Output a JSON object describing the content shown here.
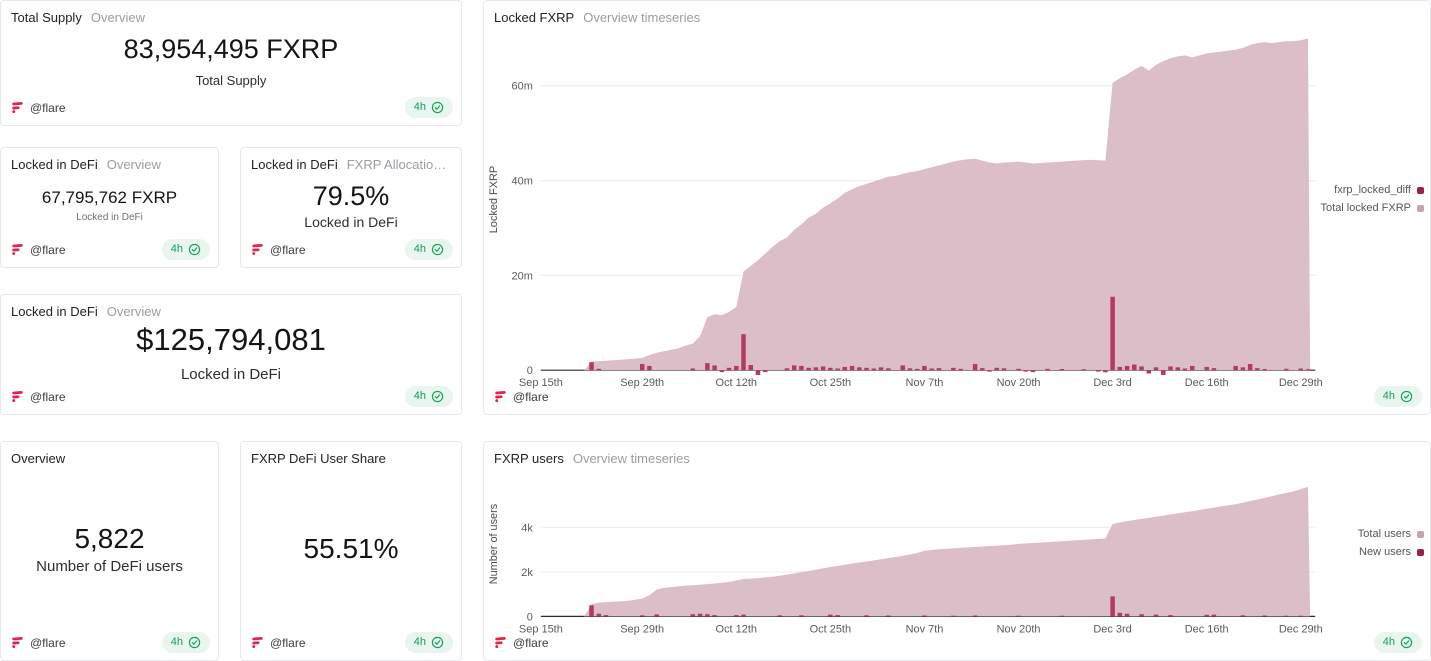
{
  "colors": {
    "flare_brand": "#e2234f",
    "badge_text": "#12a05a",
    "badge_bg": "#e9f6ef",
    "area_fill": "#dcbec8",
    "bar_fill": "#b43a5f",
    "legend_diff_marker": "#9e1f43",
    "legend_total_marker": "#c9a2b0"
  },
  "author": {
    "handle": "@flare"
  },
  "badge": {
    "label": "4h"
  },
  "cards": [
    {
      "title": "Total Supply",
      "subtitle": "Overview",
      "value": "83,954,495 FXRP",
      "value_label": "Total Supply"
    },
    {
      "title": "Locked in DeFi",
      "subtitle": "Overview",
      "value": "67,795,762 FXRP",
      "value_label": "Locked in DeFi"
    },
    {
      "title": "Locked in DeFi",
      "subtitle": "FXRP Allocation in ...",
      "value": "79.5%",
      "value_label": "Locked in DeFi"
    },
    {
      "title": "Locked in DeFi",
      "subtitle": "Overview",
      "value": "$125,794,081",
      "value_label": "Locked in DeFi"
    },
    {
      "title": "Overview",
      "subtitle": "",
      "value": "5,822",
      "value_label": "Number of DeFi users"
    },
    {
      "title": "FXRP DeFi User Share",
      "subtitle": "",
      "value": "55.51%",
      "value_label": ""
    }
  ],
  "chart_data": [
    {
      "type": "area+bar",
      "title": "Locked FXRP",
      "subtitle": "Overview timeseries",
      "ylabel": "Locked FXRP",
      "unit": "million FXRP",
      "ylim": [
        0,
        72
      ],
      "x_domain_days": [
        0,
        107
      ],
      "x_day0_date": "Sep 15th",
      "grid": "horizontal",
      "legend_position": "right",
      "yticks": [
        {
          "value": 0,
          "label": "0"
        },
        {
          "value": 20,
          "label": "20m"
        },
        {
          "value": 40,
          "label": "40m"
        },
        {
          "value": 60,
          "label": "60m"
        }
      ],
      "xticks": [
        {
          "day": 0,
          "label": "Sep 15th"
        },
        {
          "day": 14,
          "label": "Sep 29th"
        },
        {
          "day": 27,
          "label": "Oct 12th"
        },
        {
          "day": 40,
          "label": "Oct 25th"
        },
        {
          "day": 53,
          "label": "Nov 7th"
        },
        {
          "day": 66,
          "label": "Nov 20th"
        },
        {
          "day": 79,
          "label": "Dec 3rd"
        },
        {
          "day": 92,
          "label": "Dec 16th"
        },
        {
          "day": 105,
          "label": "Dec 29th"
        }
      ],
      "legend": [
        {
          "label": "fxrp_locked_diff",
          "color": "#9e1f43"
        },
        {
          "label": "Total locked FXRP",
          "color": "#c9a2b0"
        }
      ],
      "area_series": {
        "name": "Total locked FXRP",
        "color": "#dcbec8",
        "points": [
          [
            0,
            0
          ],
          [
            6,
            0
          ],
          [
            7,
            1.8
          ],
          [
            9,
            2.0
          ],
          [
            12,
            2.3
          ],
          [
            14,
            2.6
          ],
          [
            15,
            3.2
          ],
          [
            16,
            3.7
          ],
          [
            17,
            4.0
          ],
          [
            19,
            4.6
          ],
          [
            20,
            5.2
          ],
          [
            21,
            5.6
          ],
          [
            22,
            7.2
          ],
          [
            23,
            11.2
          ],
          [
            24,
            11.8
          ],
          [
            25,
            11.6
          ],
          [
            26,
            12.3
          ],
          [
            27,
            13.3
          ],
          [
            28,
            20.8
          ],
          [
            29,
            22.0
          ],
          [
            30,
            23.2
          ],
          [
            31,
            24.6
          ],
          [
            32,
            26.0
          ],
          [
            33,
            27.2
          ],
          [
            34,
            28.0
          ],
          [
            35,
            29.6
          ],
          [
            36,
            30.8
          ],
          [
            37,
            32.2
          ],
          [
            38,
            33.0
          ],
          [
            39,
            34.3
          ],
          [
            40,
            35.2
          ],
          [
            41,
            36.2
          ],
          [
            42,
            37.4
          ],
          [
            43,
            38.2
          ],
          [
            44,
            38.8
          ],
          [
            45,
            39.3
          ],
          [
            46,
            39.8
          ],
          [
            47,
            40.3
          ],
          [
            48,
            40.8
          ],
          [
            49,
            41.0
          ],
          [
            50,
            41.4
          ],
          [
            51,
            41.8
          ],
          [
            52,
            42.0
          ],
          [
            53,
            42.4
          ],
          [
            54,
            42.8
          ],
          [
            55,
            43.2
          ],
          [
            56,
            43.6
          ],
          [
            57,
            44.0
          ],
          [
            58,
            44.3
          ],
          [
            59,
            44.5
          ],
          [
            60,
            44.6
          ],
          [
            61,
            44.2
          ],
          [
            62,
            43.8
          ],
          [
            63,
            43.6
          ],
          [
            64,
            43.8
          ],
          [
            65,
            43.9
          ],
          [
            66,
            44.0
          ],
          [
            67,
            43.8
          ],
          [
            68,
            43.6
          ],
          [
            70,
            43.8
          ],
          [
            72,
            44.0
          ],
          [
            74,
            44.2
          ],
          [
            76,
            44.4
          ],
          [
            77,
            44.3
          ],
          [
            78,
            44.2
          ],
          [
            79,
            60.6
          ],
          [
            80,
            61.6
          ],
          [
            81,
            62.4
          ],
          [
            82,
            63.4
          ],
          [
            83,
            64.2
          ],
          [
            84,
            63.2
          ],
          [
            85,
            64.4
          ],
          [
            86,
            65.2
          ],
          [
            87,
            65.8
          ],
          [
            88,
            66.2
          ],
          [
            89,
            66.4
          ],
          [
            90,
            66.0
          ],
          [
            91,
            66.4
          ],
          [
            92,
            66.8
          ],
          [
            93,
            67.0
          ],
          [
            94,
            67.2
          ],
          [
            95,
            67.4
          ],
          [
            96,
            67.6
          ],
          [
            97,
            68.0
          ],
          [
            98,
            68.6
          ],
          [
            99,
            69.0
          ],
          [
            100,
            69.2
          ],
          [
            101,
            69.0
          ],
          [
            102,
            69.2
          ],
          [
            103,
            69.4
          ],
          [
            104,
            69.4
          ],
          [
            105,
            69.6
          ],
          [
            106,
            70.0
          ],
          [
            106.3,
            0
          ]
        ]
      },
      "bar_series": {
        "name": "fxrp_locked_diff",
        "color": "#b43a5f",
        "points": [
          [
            7,
            1.7
          ],
          [
            8,
            0.3
          ],
          [
            14,
            1.3
          ],
          [
            15,
            0.9
          ],
          [
            21,
            0.35
          ],
          [
            23,
            1.5
          ],
          [
            24,
            1.0
          ],
          [
            25,
            -0.4
          ],
          [
            26,
            0.5
          ],
          [
            27,
            0.9
          ],
          [
            28,
            7.6
          ],
          [
            29,
            1.1
          ],
          [
            30,
            -1.0
          ],
          [
            31,
            -0.4
          ],
          [
            34,
            0.4
          ],
          [
            35,
            1.0
          ],
          [
            36,
            0.9
          ],
          [
            37,
            0.5
          ],
          [
            38,
            0.6
          ],
          [
            39,
            0.8
          ],
          [
            40,
            0.5
          ],
          [
            41,
            0.35
          ],
          [
            42,
            0.7
          ],
          [
            43,
            0.9
          ],
          [
            44,
            0.6
          ],
          [
            45,
            0.5
          ],
          [
            46,
            0.35
          ],
          [
            47,
            0.6
          ],
          [
            48,
            0.4
          ],
          [
            50,
            1.0
          ],
          [
            51,
            0.4
          ],
          [
            52,
            0.3
          ],
          [
            53,
            0.9
          ],
          [
            54,
            0.35
          ],
          [
            55,
            0.45
          ],
          [
            57,
            0.5
          ],
          [
            58,
            0.3
          ],
          [
            60,
            1.3
          ],
          [
            61,
            0.45
          ],
          [
            62,
            -0.3
          ],
          [
            63,
            0.5
          ],
          [
            64,
            0.4
          ],
          [
            66,
            0.3
          ],
          [
            67,
            -0.3
          ],
          [
            68,
            -0.4
          ],
          [
            70,
            0.3
          ],
          [
            72,
            0.25
          ],
          [
            75,
            0.2
          ],
          [
            77,
            -0.3
          ],
          [
            78,
            -0.45
          ],
          [
            79,
            15.5
          ],
          [
            80,
            0.7
          ],
          [
            81,
            0.9
          ],
          [
            82,
            1.2
          ],
          [
            83,
            0.8
          ],
          [
            84,
            -0.7
          ],
          [
            85,
            0.6
          ],
          [
            86,
            -1.0
          ],
          [
            87,
            0.8
          ],
          [
            88,
            0.6
          ],
          [
            89,
            0.35
          ],
          [
            90,
            0.9
          ],
          [
            92,
            0.7
          ],
          [
            93,
            0.45
          ],
          [
            96,
            0.9
          ],
          [
            97,
            0.6
          ],
          [
            98,
            1.3
          ],
          [
            99,
            0.45
          ],
          [
            100,
            0.25
          ],
          [
            103,
            0.3
          ],
          [
            105,
            0.35
          ],
          [
            106,
            0.2
          ]
        ]
      }
    },
    {
      "type": "area+bar",
      "title": "FXRP users",
      "subtitle": "Overview timeseries",
      "ylabel": "Number of users",
      "unit": "thousand users",
      "ylim": [
        0,
        6.5
      ],
      "x_domain_days": [
        0,
        107
      ],
      "x_day0_date": "Sep 15th",
      "grid": "horizontal",
      "legend_position": "right",
      "yticks": [
        {
          "value": 0,
          "label": "0"
        },
        {
          "value": 2,
          "label": "2k"
        },
        {
          "value": 4,
          "label": "4k"
        }
      ],
      "xticks": [
        {
          "day": 0,
          "label": "Sep 15th"
        },
        {
          "day": 14,
          "label": "Sep 29th"
        },
        {
          "day": 27,
          "label": "Oct 12th"
        },
        {
          "day": 40,
          "label": "Oct 25th"
        },
        {
          "day": 53,
          "label": "Nov 7th"
        },
        {
          "day": 66,
          "label": "Nov 20th"
        },
        {
          "day": 79,
          "label": "Dec 3rd"
        },
        {
          "day": 92,
          "label": "Dec 16th"
        },
        {
          "day": 105,
          "label": "Dec 29th"
        }
      ],
      "legend": [
        {
          "label": "Total users",
          "color": "#c9a2b0"
        },
        {
          "label": "New users",
          "color": "#9e1f43"
        }
      ],
      "area_series": {
        "name": "Total users",
        "color": "#dcbec8",
        "points": [
          [
            0,
            0
          ],
          [
            6,
            0
          ],
          [
            7,
            0.55
          ],
          [
            8,
            0.62
          ],
          [
            10,
            0.66
          ],
          [
            12,
            0.7
          ],
          [
            14,
            0.8
          ],
          [
            15,
            0.95
          ],
          [
            16,
            1.2
          ],
          [
            17,
            1.28
          ],
          [
            18,
            1.32
          ],
          [
            20,
            1.38
          ],
          [
            22,
            1.42
          ],
          [
            24,
            1.48
          ],
          [
            26,
            1.55
          ],
          [
            27,
            1.62
          ],
          [
            28,
            1.68
          ],
          [
            30,
            1.72
          ],
          [
            32,
            1.78
          ],
          [
            34,
            1.88
          ],
          [
            36,
            1.98
          ],
          [
            38,
            2.1
          ],
          [
            40,
            2.22
          ],
          [
            42,
            2.32
          ],
          [
            44,
            2.42
          ],
          [
            46,
            2.52
          ],
          [
            48,
            2.62
          ],
          [
            50,
            2.72
          ],
          [
            52,
            2.85
          ],
          [
            53,
            2.95
          ],
          [
            55,
            3.02
          ],
          [
            57,
            3.06
          ],
          [
            59,
            3.1
          ],
          [
            61,
            3.14
          ],
          [
            63,
            3.18
          ],
          [
            65,
            3.22
          ],
          [
            66,
            3.26
          ],
          [
            68,
            3.3
          ],
          [
            70,
            3.34
          ],
          [
            72,
            3.38
          ],
          [
            74,
            3.42
          ],
          [
            76,
            3.46
          ],
          [
            78,
            3.5
          ],
          [
            79,
            4.15
          ],
          [
            80,
            4.22
          ],
          [
            81,
            4.28
          ],
          [
            83,
            4.38
          ],
          [
            85,
            4.48
          ],
          [
            87,
            4.58
          ],
          [
            89,
            4.68
          ],
          [
            91,
            4.78
          ],
          [
            92,
            4.84
          ],
          [
            94,
            4.94
          ],
          [
            96,
            5.04
          ],
          [
            98,
            5.18
          ],
          [
            100,
            5.32
          ],
          [
            102,
            5.48
          ],
          [
            104,
            5.62
          ],
          [
            105,
            5.72
          ],
          [
            106,
            5.82
          ],
          [
            106.3,
            0
          ]
        ]
      },
      "bar_series": {
        "name": "New users",
        "color": "#b43a5f",
        "points": [
          [
            7,
            0.5
          ],
          [
            8,
            0.12
          ],
          [
            9,
            0.06
          ],
          [
            14,
            0.05
          ],
          [
            16,
            0.09
          ],
          [
            21,
            0.1
          ],
          [
            22,
            0.12
          ],
          [
            23,
            0.1
          ],
          [
            24,
            0.06
          ],
          [
            27,
            0.06
          ],
          [
            28,
            0.08
          ],
          [
            33,
            0.05
          ],
          [
            36,
            0.05
          ],
          [
            40,
            0.08
          ],
          [
            41,
            0.06
          ],
          [
            45,
            0.05
          ],
          [
            48,
            0.04
          ],
          [
            53,
            0.04
          ],
          [
            57,
            0.03
          ],
          [
            60,
            0.04
          ],
          [
            66,
            0.03
          ],
          [
            72,
            0.03
          ],
          [
            79,
            0.9
          ],
          [
            80,
            0.16
          ],
          [
            81,
            0.12
          ],
          [
            83,
            0.1
          ],
          [
            85,
            0.08
          ],
          [
            87,
            0.06
          ],
          [
            92,
            0.07
          ],
          [
            93,
            0.08
          ],
          [
            97,
            0.05
          ],
          [
            100,
            0.04
          ],
          [
            103,
            0.03
          ],
          [
            105,
            0.03
          ]
        ]
      }
    }
  ]
}
